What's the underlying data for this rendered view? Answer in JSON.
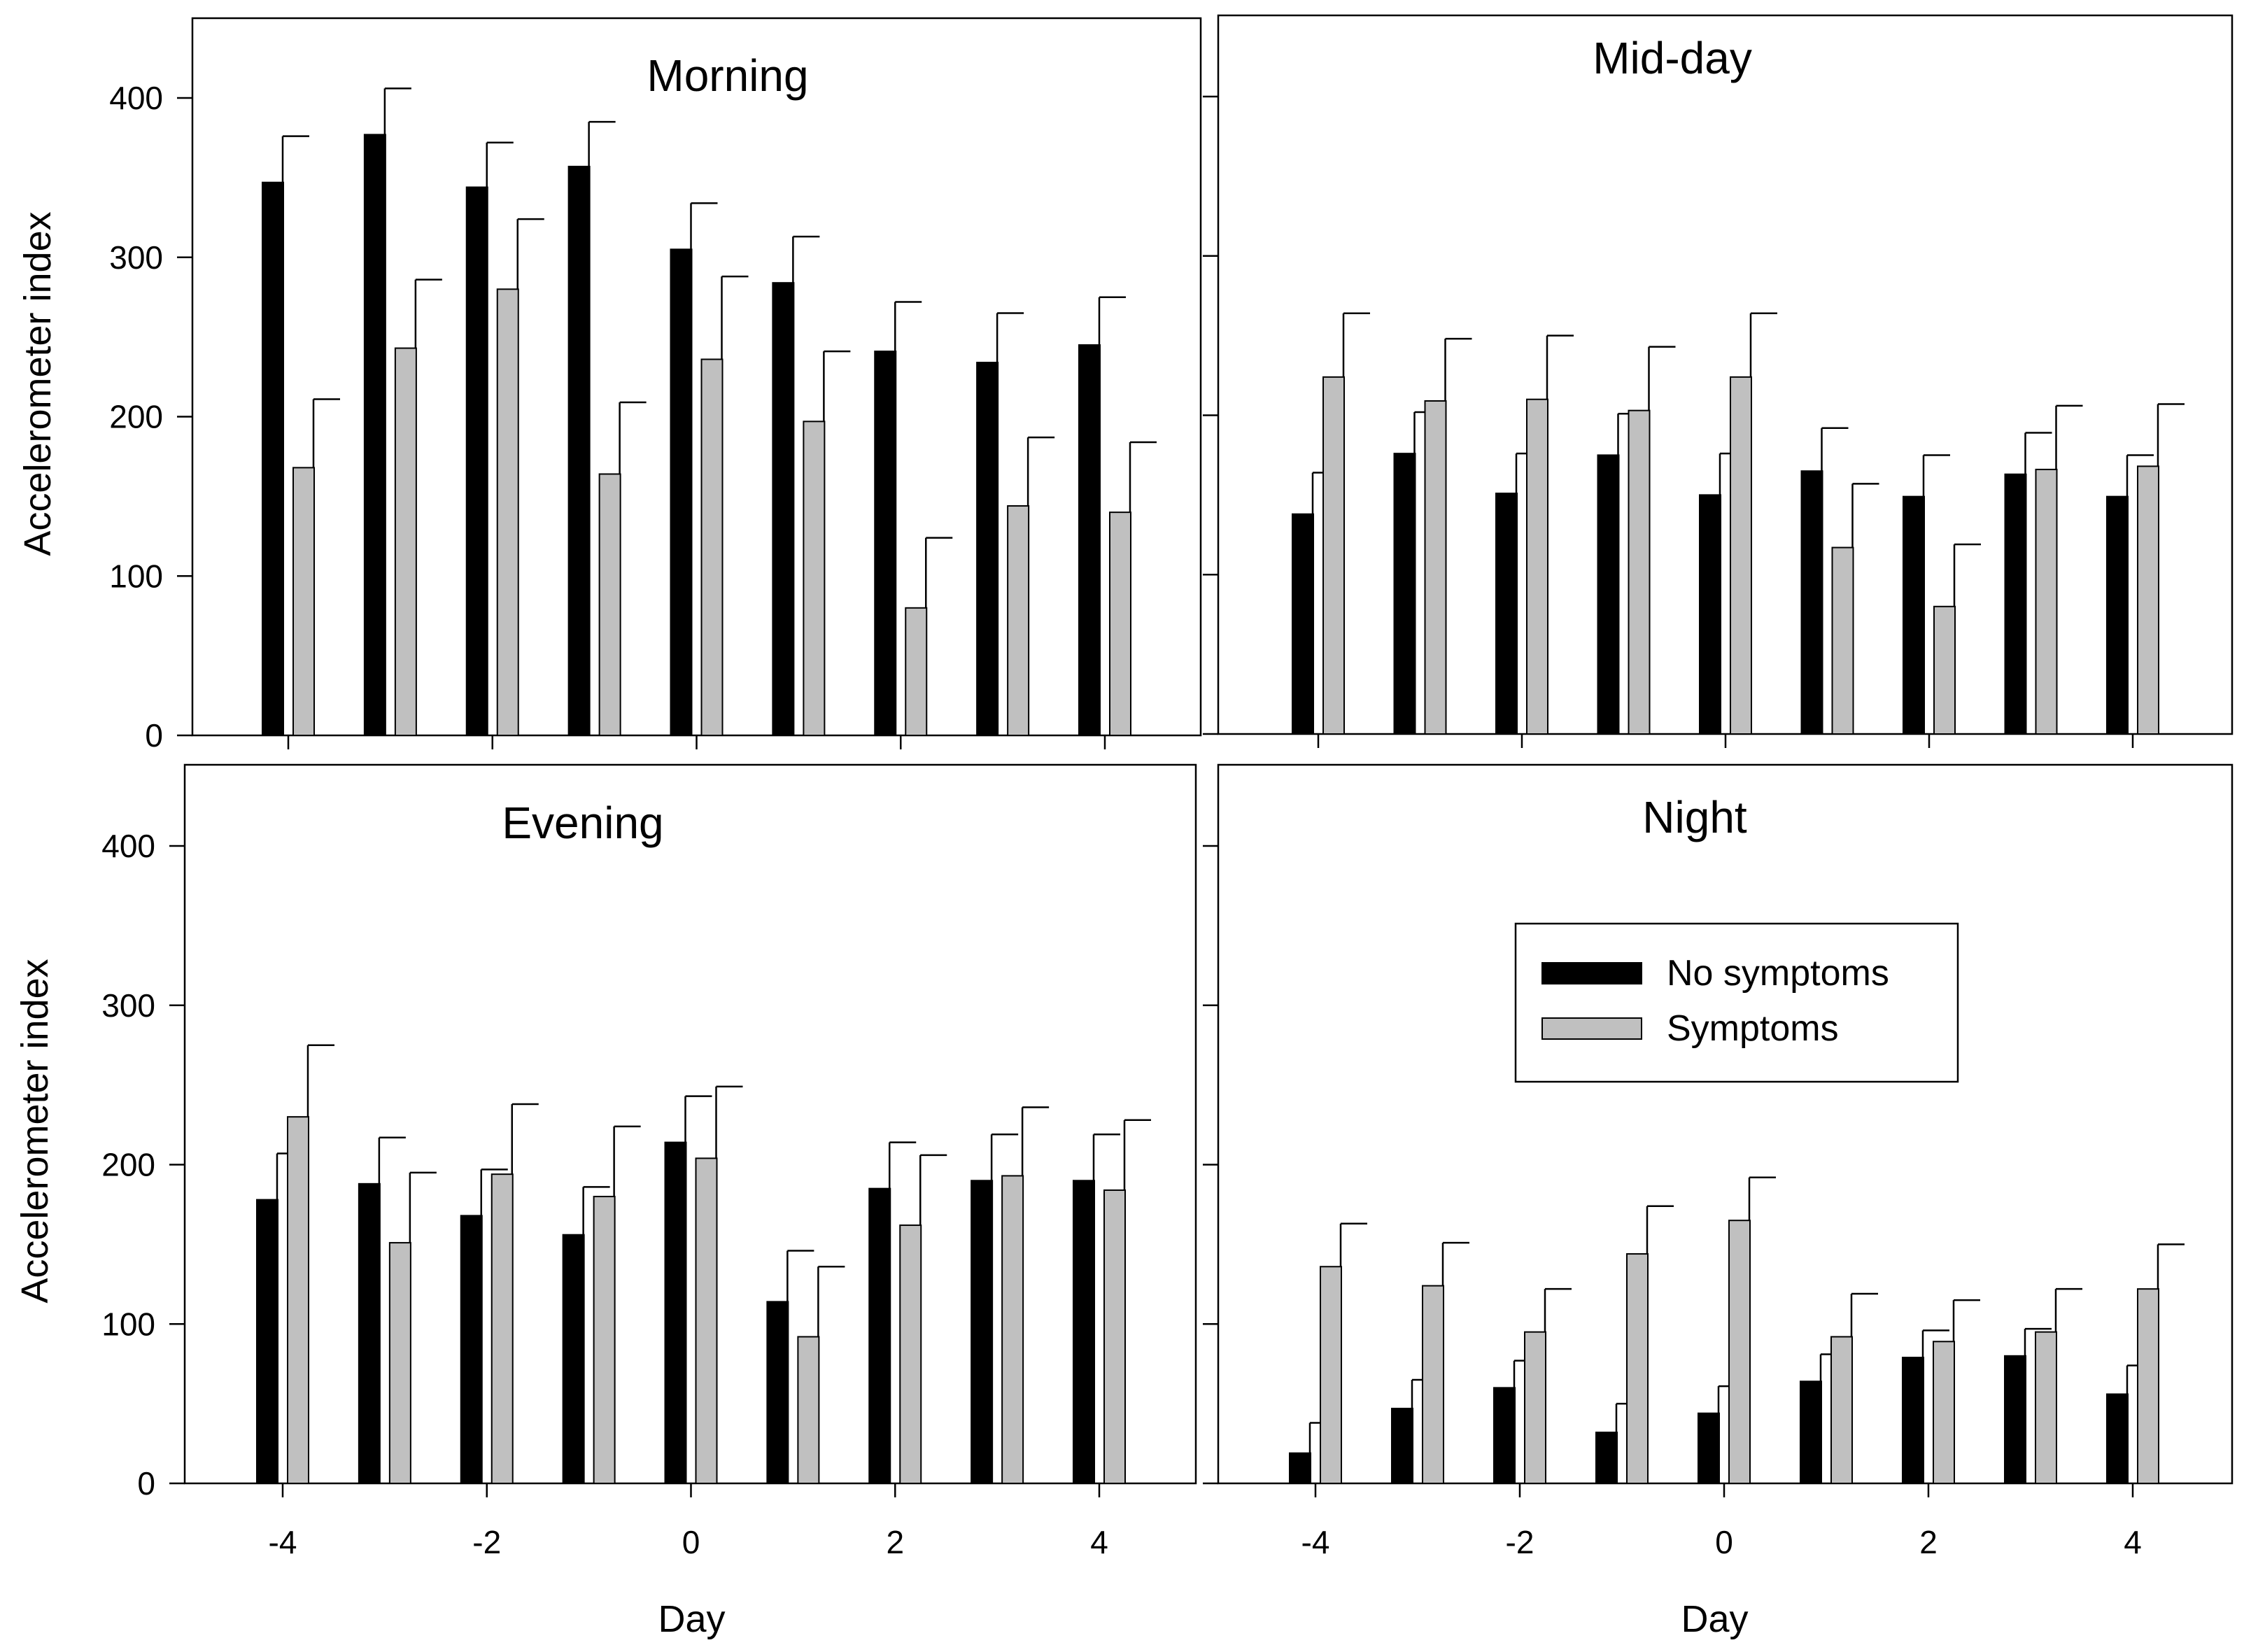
{
  "chart_data": {
    "type": "bar",
    "x": [
      -4,
      -3,
      -2,
      -1,
      0,
      1,
      2,
      3,
      4
    ],
    "x_ticks": [
      -4,
      -2,
      0,
      2,
      4
    ],
    "y_ticks": [
      0,
      100,
      200,
      300,
      400
    ],
    "ylim": [
      0,
      440
    ],
    "xlabel": "Day",
    "ylabel": "Accelerometer index",
    "legend": {
      "placement": "inside Night panel, upper-right",
      "entries": [
        {
          "name": "No symptoms",
          "color": "#000000"
        },
        {
          "name": "Symptoms",
          "color": "#c0c0c0"
        }
      ]
    },
    "panels": [
      {
        "title": "Morning",
        "series": [
          {
            "name": "No symptoms",
            "color": "#000000",
            "values": [
              347,
              377,
              344,
              357,
              305,
              284,
              241,
              234,
              245
            ],
            "errors": [
              29,
              29,
              28,
              28,
              29,
              29,
              31,
              31,
              30
            ]
          },
          {
            "name": "Symptoms",
            "color": "#c0c0c0",
            "values": [
              168,
              243,
              280,
              164,
              236,
              197,
              80,
              144,
              140
            ],
            "errors": [
              43,
              43,
              44,
              45,
              52,
              44,
              44,
              43,
              44
            ]
          }
        ]
      },
      {
        "title": "Mid-day",
        "series": [
          {
            "name": "No symptoms",
            "color": "#000000",
            "values": [
              138,
              176,
              151,
              175,
              150,
              165,
              149,
              163,
              149
            ],
            "errors": [
              26,
              26,
              25,
              26,
              26,
              27,
              26,
              26,
              26
            ]
          },
          {
            "name": "Symptoms",
            "color": "#c0c0c0",
            "values": [
              224,
              209,
              210,
              203,
              224,
              117,
              80,
              166,
              168
            ],
            "errors": [
              40,
              39,
              40,
              40,
              40,
              40,
              39,
              40,
              39
            ]
          }
        ]
      },
      {
        "title": "Evening",
        "series": [
          {
            "name": "No symptoms",
            "color": "#000000",
            "values": [
              178,
              188,
              168,
              156,
              214,
              114,
              185,
              190,
              190
            ],
            "errors": [
              29,
              29,
              29,
              30,
              29,
              32,
              29,
              29,
              29
            ]
          },
          {
            "name": "Symptoms",
            "color": "#c0c0c0",
            "values": [
              230,
              151,
              194,
              180,
              204,
              92,
              162,
              193,
              184
            ],
            "errors": [
              45,
              44,
              44,
              44,
              45,
              44,
              44,
              43,
              44
            ]
          }
        ]
      },
      {
        "title": "Night",
        "series": [
          {
            "name": "No symptoms",
            "color": "#000000",
            "values": [
              19,
              47,
              60,
              32,
              44,
              64,
              79,
              80,
              56
            ],
            "errors": [
              19,
              18,
              17,
              18,
              17,
              17,
              17,
              17,
              18
            ]
          },
          {
            "name": "Symptoms",
            "color": "#c0c0c0",
            "values": [
              136,
              124,
              95,
              144,
              165,
              92,
              89,
              95,
              122
            ],
            "errors": [
              27,
              27,
              27,
              30,
              27,
              27,
              26,
              27,
              28
            ]
          }
        ]
      }
    ]
  }
}
